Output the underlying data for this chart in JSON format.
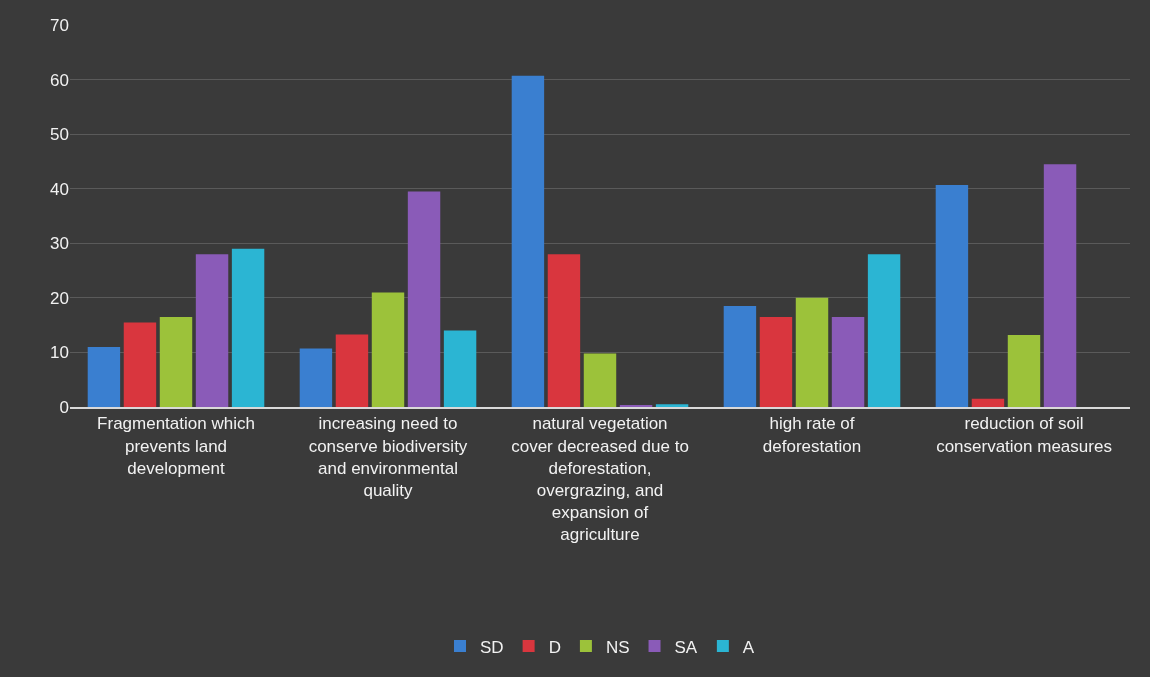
{
  "chart_data": {
    "type": "bar",
    "categories": [
      "Fragmentation which prevents land development",
      "increasing need to conserve biodiversity and environmental quality",
      "natural vegetation cover decreased due to deforestation, overgrazing, and expansion of agriculture",
      "high rate of deforestation",
      "reduction of soil conservation measures"
    ],
    "series": [
      {
        "name": "SD",
        "color": "#3a7fd0",
        "values": [
          11,
          10.7,
          60.7,
          18.5,
          40.7
        ]
      },
      {
        "name": "D",
        "color": "#d9363e",
        "values": [
          15.5,
          13.3,
          28,
          16.5,
          1.5
        ]
      },
      {
        "name": "NS",
        "color": "#9cc23a",
        "values": [
          16.5,
          21,
          9.8,
          20,
          13.2
        ]
      },
      {
        "name": "SA",
        "color": "#8a5bb8",
        "values": [
          28,
          39.5,
          0.2,
          16.5,
          44.5
        ]
      },
      {
        "name": "A",
        "color": "#2bb5d3",
        "values": [
          29,
          14,
          0.5,
          28,
          0
        ]
      }
    ],
    "ylim": [
      0,
      70
    ],
    "yticks": [
      0,
      10,
      20,
      30,
      40,
      50,
      60,
      70
    ],
    "grid": "y",
    "legend": "bottom"
  }
}
